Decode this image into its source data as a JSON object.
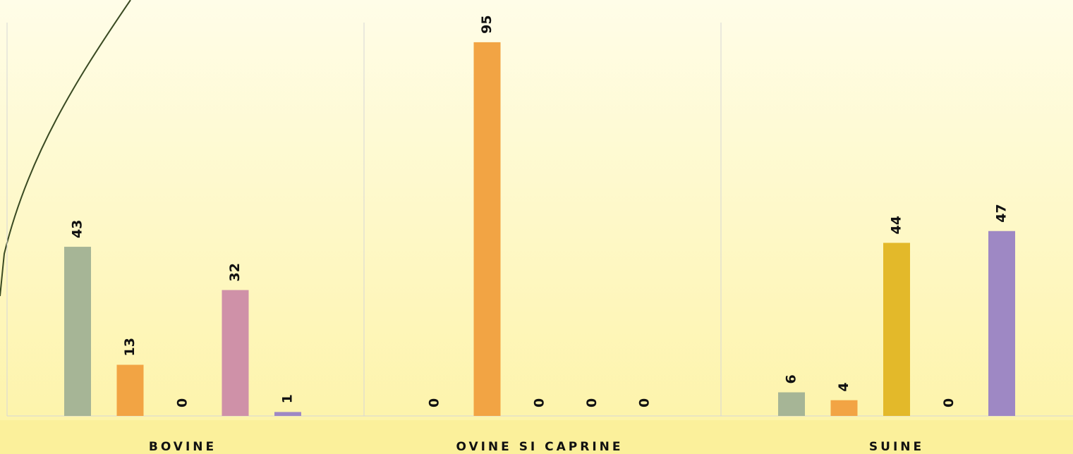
{
  "chart_data": {
    "type": "bar",
    "categories": [
      "BOVINE",
      "OVINE SI CAPRINE",
      "SUINE"
    ],
    "series": [
      {
        "color": "#a6b596",
        "values": [
          43,
          0,
          6
        ]
      },
      {
        "color": "#f2a444",
        "values": [
          13,
          95,
          4
        ]
      },
      {
        "color": "#e3b92a",
        "values": [
          0,
          0,
          44
        ]
      },
      {
        "color": "#cf91a8",
        "values": [
          32,
          0,
          0
        ]
      },
      {
        "color": "#9e88c4",
        "values": [
          1,
          0,
          47
        ]
      }
    ],
    "ylim": [
      0,
      100
    ]
  }
}
